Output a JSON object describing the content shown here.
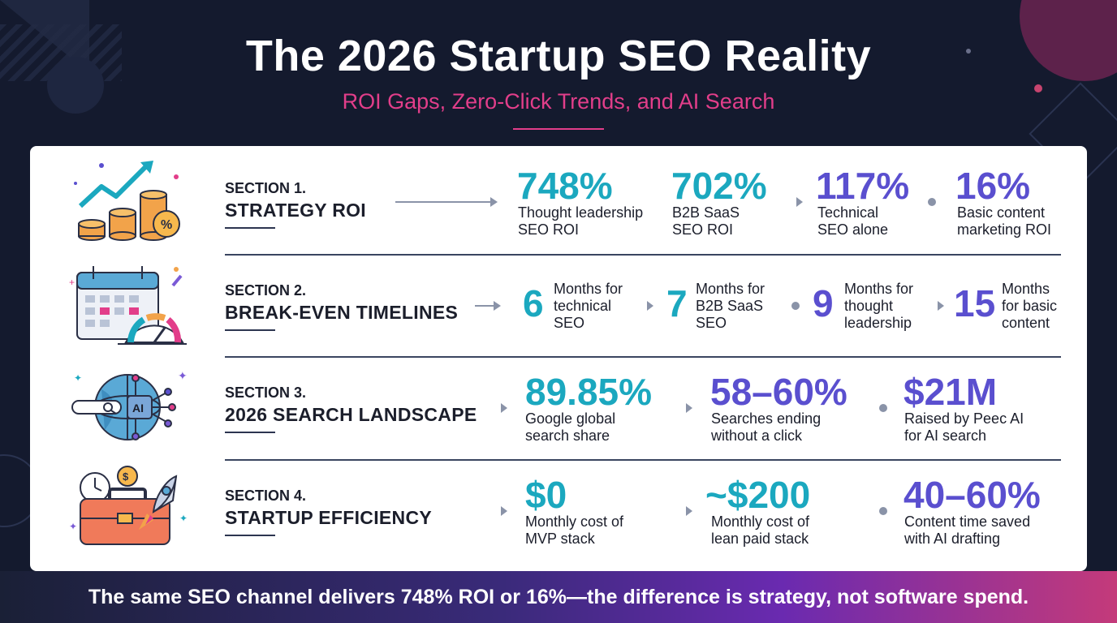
{
  "header": {
    "title": "The 2026 Startup SEO Reality",
    "subtitle": "ROI Gaps, Zero-Click Trends, and AI Search"
  },
  "colors": {
    "teal": "#1ba8bf",
    "violet": "#5a4fcf",
    "pink": "#e23e8a",
    "background": "#141a2e"
  },
  "sections": [
    {
      "label": "SECTION 1.",
      "title": "STRATEGY ROI",
      "icon": "growth-coins-icon",
      "stats": [
        {
          "value": "748%",
          "desc1": "Thought leadership",
          "desc2": "SEO ROI"
        },
        {
          "value": "702%",
          "desc1": "B2B SaaS",
          "desc2": "SEO ROI"
        },
        {
          "value": "117%",
          "desc1": "Technical",
          "desc2": "SEO alone"
        },
        {
          "value": "16%",
          "desc1": "Basic content",
          "desc2": "marketing ROI"
        }
      ]
    },
    {
      "label": "SECTION 2.",
      "title": "BREAK-EVEN TIMELINES",
      "icon": "calendar-gauge-icon",
      "stats": [
        {
          "value": "6",
          "desc1": "Months for",
          "desc2": "technical",
          "desc3": "SEO"
        },
        {
          "value": "7",
          "desc1": "Months for",
          "desc2": "B2B SaaS",
          "desc3": "SEO"
        },
        {
          "value": "9",
          "desc1": "Months for",
          "desc2": "thought",
          "desc3": "leadership"
        },
        {
          "value": "15",
          "desc1": "Months",
          "desc2": "for basic",
          "desc3": "content"
        }
      ]
    },
    {
      "label": "SECTION 3.",
      "title": "2026 SEARCH LANDSCAPE",
      "icon": "ai-globe-search-icon",
      "stats": [
        {
          "value": "89.85%",
          "desc1": "Google global",
          "desc2": "search share"
        },
        {
          "value": "58–60%",
          "desc1": "Searches ending",
          "desc2": "without a click"
        },
        {
          "value": "$21M",
          "desc1": "Raised by Peec AI",
          "desc2": "for AI search"
        }
      ]
    },
    {
      "label": "SECTION 4.",
      "title": "STARTUP EFFICIENCY",
      "icon": "toolbox-rocket-icon",
      "stats": [
        {
          "value": "$0",
          "desc1": "Monthly cost of",
          "desc2": "MVP stack"
        },
        {
          "value": "~$200",
          "desc1": "Monthly cost of",
          "desc2": "lean paid stack"
        },
        {
          "value": "40–60%",
          "desc1": "Content time saved",
          "desc2": "with AI drafting"
        }
      ]
    }
  ],
  "footer": {
    "text": "The same SEO channel delivers 748% ROI or 16%—the difference is strategy, not software spend."
  }
}
